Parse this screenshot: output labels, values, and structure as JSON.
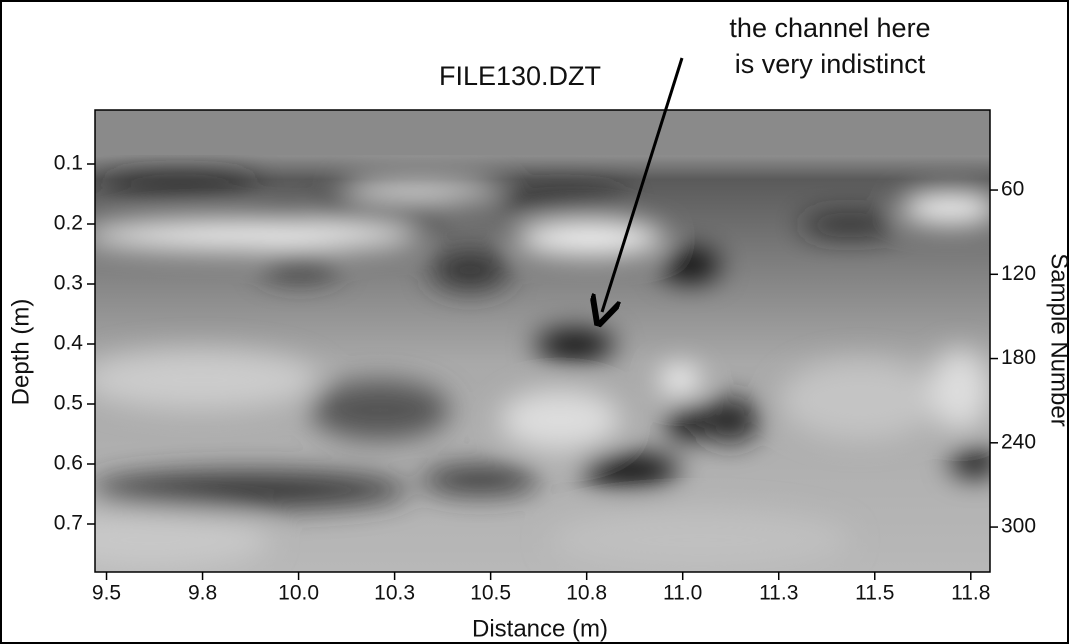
{
  "chart_data": {
    "type": "radargram",
    "title": "FILE130.DZT",
    "annotation": [
      "the channel here",
      "is very indistinct"
    ],
    "y_label": "Depth (m)",
    "y2_label": "Sample Number",
    "x_label": "Distance (m)",
    "xlim": [
      9.47,
      11.8
    ],
    "xticks": [
      {
        "value": 9.5,
        "label": "9.5"
      },
      {
        "value": 9.75,
        "label": "9.8"
      },
      {
        "value": 10.0,
        "label": "10.0"
      },
      {
        "value": 10.25,
        "label": "10.3"
      },
      {
        "value": 10.5,
        "label": "10.5"
      },
      {
        "value": 10.75,
        "label": "10.8"
      },
      {
        "value": 11.0,
        "label": "11.0"
      },
      {
        "value": 11.25,
        "label": "11.3"
      },
      {
        "value": 11.5,
        "label": "11.5"
      },
      {
        "value": 11.75,
        "label": "11.8"
      }
    ],
    "ylim": [
      0.01,
      0.78
    ],
    "yticks": [
      0.1,
      0.2,
      0.3,
      0.4,
      0.5,
      0.6,
      0.7
    ],
    "y2lim": [
      3,
      332
    ],
    "y2ticks": [
      60,
      120,
      180,
      240,
      300
    ],
    "inverted_y": true
  }
}
